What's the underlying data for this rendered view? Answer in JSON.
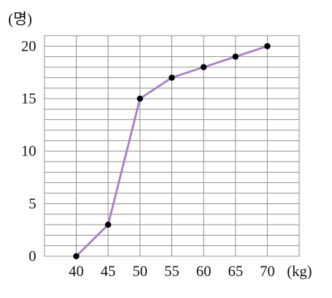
{
  "chart_data": {
    "type": "line",
    "y_label": "(명)",
    "x_label": "(kg)",
    "x": [
      40,
      45,
      50,
      55,
      60,
      65,
      70
    ],
    "series": [
      {
        "color": "#a97fc4",
        "marker_color": "#000000",
        "values": [
          0,
          3,
          15,
          17,
          18,
          19,
          20
        ]
      }
    ],
    "xlim": [
      35,
      75
    ],
    "xticks": [
      40,
      45,
      50,
      55,
      60,
      65,
      70
    ],
    "ylim": [
      0,
      21
    ],
    "yticks": [
      0,
      5,
      10,
      15,
      20
    ],
    "minor_yticks": [
      1,
      2,
      3,
      4,
      6,
      7,
      8,
      9,
      11,
      12,
      13,
      14,
      16,
      17,
      18,
      19
    ],
    "grid": true
  }
}
